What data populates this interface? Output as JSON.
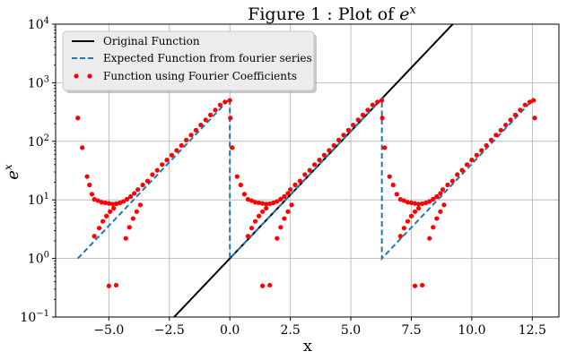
{
  "chart_data": {
    "type": "line",
    "title_prefix": "Figure 1 : Plot of ",
    "title_base": "e",
    "title_exp": "x",
    "xlabel": "x",
    "ylabel_base": "e",
    "ylabel_exp": "x",
    "xlim": [
      -7.2,
      13.6
    ],
    "ylim": [
      0.1,
      10000
    ],
    "yscale": "log",
    "grid": true,
    "legend_position": "top-left",
    "x_ticks": [
      -5.0,
      -2.5,
      0.0,
      2.5,
      5.0,
      7.5,
      10.0,
      12.5
    ],
    "x_tick_labels": [
      "−5.0",
      "−2.5",
      "0.0",
      "2.5",
      "5.0",
      "7.5",
      "10.0",
      "12.5"
    ],
    "y_ticks": [
      0.1,
      1,
      10,
      100,
      1000,
      10000
    ],
    "y_tick_labels": [
      {
        "base": "10",
        "exp": "−1"
      },
      {
        "base": "10",
        "exp": "0"
      },
      {
        "base": "10",
        "exp": "1"
      },
      {
        "base": "10",
        "exp": "2"
      },
      {
        "base": "10",
        "exp": "3"
      },
      {
        "base": "10",
        "exp": "4"
      }
    ],
    "series": [
      {
        "name": "Original Function",
        "style": "solid",
        "color": "#000000",
        "function": "exp",
        "x_range": [
          -2.4,
          9.3
        ]
      },
      {
        "name": "Expected Function from fourier series",
        "style": "dashed",
        "color": "#1f77b4",
        "function": "periodic_exp",
        "period_start": 0,
        "period": 6.2832,
        "x_range": [
          -6.2832,
          12.5664
        ]
      },
      {
        "name": "Function using Fourier Coefficients",
        "style": "points",
        "color": "#ff0000",
        "points": [
          [
            -6.2832,
            250
          ],
          [
            -6.1,
            78
          ],
          [
            -5.9,
            25
          ],
          [
            -5.8,
            18
          ],
          [
            -5.7,
            12.5
          ],
          [
            -5.6,
            10.2
          ],
          [
            -5.45,
            9.7
          ],
          [
            -5.3,
            9.1
          ],
          [
            -5.15,
            8.9
          ],
          [
            -5.0,
            8.7
          ],
          [
            -4.85,
            8.5
          ],
          [
            -4.7,
            8.6
          ],
          [
            -4.55,
            8.9
          ],
          [
            -4.4,
            9.4
          ],
          [
            -4.25,
            10.3
          ],
          [
            -4.1,
            11.4
          ],
          [
            -3.95,
            12.9
          ],
          [
            -5.6,
            2.4
          ],
          [
            -5.4,
            3.3
          ],
          [
            -5.25,
            4.3
          ],
          [
            -5.1,
            5.3
          ],
          [
            -4.95,
            6.3
          ],
          [
            -4.8,
            7.2
          ],
          [
            -4.3,
            2.2
          ],
          [
            -4.15,
            3.4
          ],
          [
            -4.0,
            4.8
          ],
          [
            -3.85,
            6.3
          ],
          [
            -3.7,
            8.2
          ],
          [
            -5.0,
            0.34
          ],
          [
            -4.7,
            0.35
          ],
          [
            -3.8,
            15
          ],
          [
            -3.6,
            18
          ],
          [
            -3.4,
            21
          ],
          [
            -3.2,
            27
          ],
          [
            -3.0,
            32
          ],
          [
            -2.8,
            40
          ],
          [
            -2.6,
            48
          ],
          [
            -2.4,
            58
          ],
          [
            -2.2,
            70
          ],
          [
            -2.0,
            85
          ],
          [
            -1.8,
            105
          ],
          [
            -1.6,
            128
          ],
          [
            -1.4,
            155
          ],
          [
            -1.2,
            190
          ],
          [
            -1.0,
            232
          ],
          [
            -0.8,
            282
          ],
          [
            -0.6,
            343
          ],
          [
            -0.4,
            418
          ],
          [
            -0.2,
            470
          ],
          [
            0.0,
            500
          ],
          [
            0.02,
            250
          ],
          [
            0.1,
            78
          ],
          [
            0.3,
            25
          ],
          [
            0.45,
            18
          ],
          [
            0.6,
            12.5
          ],
          [
            0.75,
            10.2
          ],
          [
            0.9,
            9.7
          ],
          [
            1.05,
            9.1
          ],
          [
            1.2,
            8.9
          ],
          [
            1.35,
            8.7
          ],
          [
            1.5,
            8.5
          ],
          [
            1.65,
            8.6
          ],
          [
            1.8,
            8.9
          ],
          [
            1.95,
            9.4
          ],
          [
            2.1,
            10.3
          ],
          [
            2.25,
            11.4
          ],
          [
            2.4,
            12.9
          ],
          [
            0.75,
            2.4
          ],
          [
            0.9,
            3.3
          ],
          [
            1.05,
            4.3
          ],
          [
            1.2,
            5.3
          ],
          [
            1.35,
            6.3
          ],
          [
            1.5,
            7.2
          ],
          [
            1.95,
            2.2
          ],
          [
            2.1,
            3.4
          ],
          [
            2.25,
            4.8
          ],
          [
            2.4,
            6.3
          ],
          [
            2.55,
            8.2
          ],
          [
            1.35,
            0.34
          ],
          [
            1.65,
            0.35
          ],
          [
            2.5,
            15
          ],
          [
            2.7,
            18
          ],
          [
            2.9,
            21
          ],
          [
            3.1,
            27
          ],
          [
            3.3,
            32
          ],
          [
            3.5,
            40
          ],
          [
            3.7,
            48
          ],
          [
            3.9,
            58
          ],
          [
            4.1,
            70
          ],
          [
            4.3,
            85
          ],
          [
            4.5,
            105
          ],
          [
            4.7,
            128
          ],
          [
            4.9,
            155
          ],
          [
            5.1,
            190
          ],
          [
            5.3,
            232
          ],
          [
            5.5,
            282
          ],
          [
            5.7,
            343
          ],
          [
            5.9,
            418
          ],
          [
            6.1,
            470
          ],
          [
            6.28,
            500
          ],
          [
            6.3,
            250
          ],
          [
            6.4,
            78
          ],
          [
            6.6,
            25
          ],
          [
            6.75,
            18
          ],
          [
            6.9,
            12.5
          ],
          [
            7.05,
            10.2
          ],
          [
            7.2,
            9.7
          ],
          [
            7.35,
            9.1
          ],
          [
            7.5,
            8.9
          ],
          [
            7.65,
            8.7
          ],
          [
            7.8,
            8.5
          ],
          [
            7.95,
            8.6
          ],
          [
            8.1,
            8.9
          ],
          [
            8.25,
            9.4
          ],
          [
            8.4,
            10.3
          ],
          [
            8.55,
            11.4
          ],
          [
            8.7,
            12.9
          ],
          [
            7.05,
            2.4
          ],
          [
            7.2,
            3.3
          ],
          [
            7.35,
            4.3
          ],
          [
            7.5,
            5.3
          ],
          [
            7.65,
            6.3
          ],
          [
            7.8,
            7.2
          ],
          [
            8.25,
            2.2
          ],
          [
            8.4,
            3.4
          ],
          [
            8.55,
            4.8
          ],
          [
            8.7,
            6.3
          ],
          [
            8.85,
            8.2
          ],
          [
            7.65,
            0.34
          ],
          [
            7.95,
            0.35
          ],
          [
            8.8,
            15
          ],
          [
            9.0,
            18
          ],
          [
            9.2,
            21
          ],
          [
            9.4,
            27
          ],
          [
            9.6,
            32
          ],
          [
            9.8,
            40
          ],
          [
            10.0,
            48
          ],
          [
            10.2,
            58
          ],
          [
            10.4,
            70
          ],
          [
            10.6,
            85
          ],
          [
            10.8,
            105
          ],
          [
            11.0,
            128
          ],
          [
            11.2,
            155
          ],
          [
            11.4,
            190
          ],
          [
            11.6,
            232
          ],
          [
            11.8,
            282
          ],
          [
            12.0,
            343
          ],
          [
            12.2,
            418
          ],
          [
            12.4,
            470
          ],
          [
            12.55,
            500
          ],
          [
            12.6,
            250
          ]
        ]
      }
    ]
  }
}
